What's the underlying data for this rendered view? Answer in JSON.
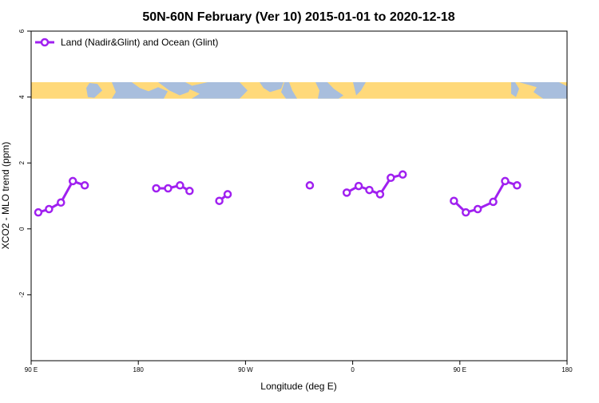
{
  "chart_data": {
    "type": "line",
    "title": "50N-60N February (Ver 10)   2015-01-01 to 2020-12-18",
    "xlabel": "Longitude (deg E)",
    "ylabel": "XCO2 - MLO trend (ppm)",
    "xlim": [
      90,
      540
    ],
    "ylim": [
      -4,
      6
    ],
    "x_ticks": [
      {
        "value": 90,
        "label": "90 E"
      },
      {
        "value": 180,
        "label": "180"
      },
      {
        "value": 270,
        "label": "90 W"
      },
      {
        "value": 360,
        "label": "0"
      },
      {
        "value": 450,
        "label": "90 E"
      },
      {
        "value": 540,
        "label": "180"
      }
    ],
    "y_ticks": [
      {
        "value": -2,
        "label": "-2"
      },
      {
        "value": 0,
        "label": "0"
      },
      {
        "value": 2,
        "label": "2"
      },
      {
        "value": 4,
        "label": "4"
      },
      {
        "value": 6,
        "label": "6"
      }
    ],
    "legend": {
      "position": "top-left"
    },
    "map_strip": {
      "y_range": [
        3.95,
        4.45
      ],
      "ocean_color": "#a8bedd",
      "land_color": "#ffd97a"
    },
    "colors": {
      "series": "#a020f0"
    },
    "series": [
      {
        "name": "Land (Nadir&Glint) and Ocean (Glint)",
        "segments": [
          [
            [
              96,
              0.5
            ],
            [
              105,
              0.6
            ],
            [
              115,
              0.8
            ],
            [
              125,
              1.45
            ],
            [
              135,
              1.32
            ]
          ],
          [
            [
              195,
              1.23
            ],
            [
              205,
              1.23
            ],
            [
              215,
              1.32
            ],
            [
              223,
              1.15
            ]
          ],
          [
            [
              248,
              0.85
            ],
            [
              255,
              1.05
            ]
          ],
          [
            [
              324,
              1.32
            ]
          ],
          [
            [
              355,
              1.1
            ],
            [
              365,
              1.3
            ],
            [
              374,
              1.18
            ],
            [
              383,
              1.05
            ],
            [
              392,
              1.55
            ],
            [
              402,
              1.65
            ]
          ],
          [
            [
              445,
              0.85
            ],
            [
              455,
              0.5
            ],
            [
              465,
              0.6
            ],
            [
              478,
              0.82
            ],
            [
              488,
              1.45
            ],
            [
              498,
              1.32
            ]
          ]
        ]
      }
    ]
  }
}
